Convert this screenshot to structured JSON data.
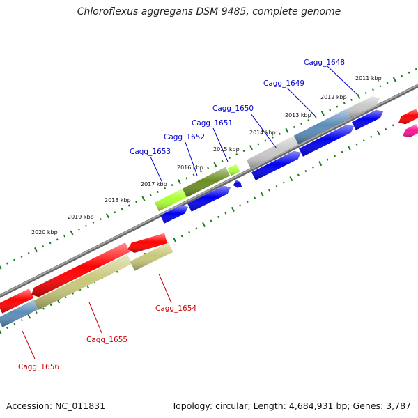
{
  "title": "Chloroflexus aggregans DSM 9485, complete genome",
  "footer": {
    "accession": "Accession: NC_011831",
    "summary": "Topology: circular; Length: 4,684,931 bp; Genes: 3,787"
  },
  "scale_labels": [
    "2011 kbp",
    "2012 kbp",
    "2013 kbp",
    "2014 kbp",
    "2015 kbp",
    "2016 kbp",
    "2017 kbp",
    "2018 kbp",
    "2019 kbp",
    "2020 kbp"
  ],
  "gene_labels": {
    "forward": [
      "Cagg_1648",
      "Cagg_1649",
      "Cagg_1650",
      "Cagg_1651",
      "Cagg_1652",
      "Cagg_1653"
    ],
    "reverse": [
      "Cagg_1654",
      "Cagg_1655",
      "Cagg_1656"
    ]
  },
  "colors": {
    "forward_label": "#0000cc",
    "reverse_label": "#cc0000",
    "tick": "#1a7a1a",
    "backbone": "#8a8a8a",
    "red": "#ff0000",
    "blue": "#0000ee",
    "gray": "#c8c8c8",
    "steel": "#5b8db8",
    "olive": "#6b8e23",
    "lime": "#aaff33",
    "khaki": "#c8c87a",
    "pink": "#ff1493"
  }
}
